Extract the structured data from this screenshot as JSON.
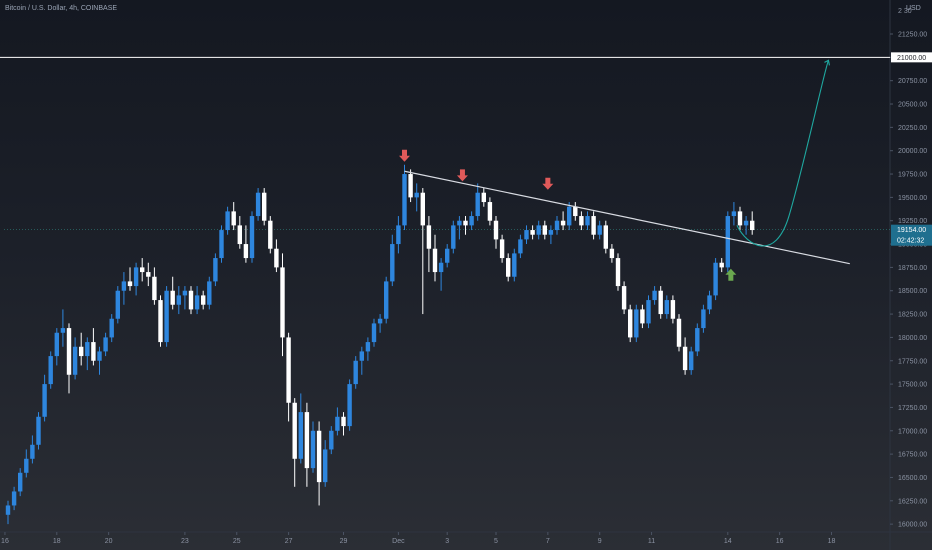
{
  "header": {
    "symbol": "Bitcoin / U.S. Dollar, 4h, COINBASE",
    "currency": "USD"
  },
  "price_axis": {
    "ticks": [
      "21250.00",
      "21000.00",
      "20750.00",
      "20500.00",
      "20250.00",
      "20000.00",
      "19750.00",
      "19500.00",
      "19250.00",
      "19000.00",
      "18750.00",
      "18500.00",
      "18250.00",
      "18000.00",
      "17750.00",
      "17500.00",
      "17250.00",
      "17000.00",
      "16750.00",
      "16500.00",
      "16250.00",
      "16000.00"
    ],
    "top_partial_label": "2 30",
    "last_price": "19154.00",
    "countdown": "02:42:32",
    "level_label": "21000.00"
  },
  "time_axis": {
    "ticks": [
      "16",
      "18",
      "20",
      "23",
      "25",
      "27",
      "29",
      "Dec",
      "3",
      "5",
      "7",
      "9",
      "11",
      "14",
      "16",
      "18"
    ]
  },
  "colors": {
    "up": "#2e86de",
    "down": "#ffffff",
    "trendline": "#d8dbe2",
    "resistance": "#ffffff",
    "arrow_top": "#e05a5a",
    "arrow_bottom": "#6aa84f",
    "projection": "#1fa8a0",
    "price_line": "#2e7d7a"
  },
  "chart_data": {
    "type": "candlestick",
    "title": "Bitcoin / U.S. Dollar, 4h, COINBASE",
    "ylabel": "USD",
    "ylim": [
      15980,
      21400
    ],
    "x_ticks": [
      "16",
      "18",
      "20",
      "23",
      "25",
      "27",
      "29",
      "Dec",
      "3",
      "5",
      "7",
      "9",
      "11",
      "14",
      "16",
      "18"
    ],
    "ohlc": [
      [
        16100,
        16250,
        16000,
        16200
      ],
      [
        16200,
        16400,
        16150,
        16350
      ],
      [
        16350,
        16600,
        16300,
        16550
      ],
      [
        16550,
        16800,
        16500,
        16700
      ],
      [
        16700,
        16950,
        16650,
        16850
      ],
      [
        16850,
        17200,
        16800,
        17150
      ],
      [
        17150,
        17600,
        17100,
        17500
      ],
      [
        17500,
        17850,
        17450,
        17800
      ],
      [
        17800,
        18100,
        17700,
        18050
      ],
      [
        18050,
        18300,
        17900,
        18100
      ],
      [
        18100,
        18150,
        17400,
        17600
      ],
      [
        17600,
        18000,
        17550,
        17900
      ],
      [
        17900,
        18050,
        17700,
        17800
      ],
      [
        17800,
        18000,
        17650,
        17950
      ],
      [
        17950,
        18100,
        17700,
        17750
      ],
      [
        17750,
        17900,
        17600,
        17850
      ],
      [
        17850,
        18050,
        17800,
        18000
      ],
      [
        18000,
        18250,
        17950,
        18200
      ],
      [
        18200,
        18550,
        18150,
        18500
      ],
      [
        18500,
        18700,
        18350,
        18600
      ],
      [
        18600,
        18750,
        18500,
        18550
      ],
      [
        18550,
        18800,
        18450,
        18750
      ],
      [
        18750,
        18850,
        18600,
        18700
      ],
      [
        18700,
        18800,
        18550,
        18650
      ],
      [
        18650,
        18750,
        18350,
        18400
      ],
      [
        18400,
        18450,
        17900,
        17950
      ],
      [
        17950,
        18550,
        17900,
        18500
      ],
      [
        18500,
        18650,
        18300,
        18350
      ],
      [
        18350,
        18550,
        18250,
        18450
      ],
      [
        18450,
        18550,
        18300,
        18500
      ],
      [
        18500,
        18550,
        18250,
        18300
      ],
      [
        18300,
        18550,
        18250,
        18450
      ],
      [
        18450,
        18500,
        18300,
        18350
      ],
      [
        18350,
        18650,
        18300,
        18600
      ],
      [
        18600,
        18900,
        18550,
        18850
      ],
      [
        18850,
        19200,
        18800,
        19150
      ],
      [
        19150,
        19400,
        19100,
        19350
      ],
      [
        19350,
        19450,
        19150,
        19200
      ],
      [
        19200,
        19300,
        18950,
        19000
      ],
      [
        19000,
        19200,
        18800,
        18850
      ],
      [
        18850,
        19350,
        18800,
        19300
      ],
      [
        19300,
        19600,
        19250,
        19550
      ],
      [
        19550,
        19600,
        19200,
        19250
      ],
      [
        19250,
        19300,
        18900,
        18950
      ],
      [
        18950,
        19050,
        18700,
        18750
      ],
      [
        18750,
        18900,
        17800,
        18000
      ],
      [
        18000,
        18050,
        17100,
        17300
      ],
      [
        17300,
        17350,
        16400,
        16700
      ],
      [
        16700,
        17400,
        16650,
        17200
      ],
      [
        17200,
        17300,
        16400,
        16600
      ],
      [
        16600,
        17100,
        16550,
        17000
      ],
      [
        17000,
        17100,
        16200,
        16450
      ],
      [
        16450,
        16900,
        16400,
        16800
      ],
      [
        16800,
        17050,
        16750,
        17000
      ],
      [
        17000,
        17250,
        16950,
        17150
      ],
      [
        17150,
        17200,
        16950,
        17050
      ],
      [
        17050,
        17550,
        17000,
        17500
      ],
      [
        17500,
        17800,
        17450,
        17750
      ],
      [
        17750,
        17900,
        17600,
        17850
      ],
      [
        17850,
        18000,
        17750,
        17950
      ],
      [
        17950,
        18200,
        17900,
        18150
      ],
      [
        18150,
        18250,
        18050,
        18200
      ],
      [
        18200,
        18650,
        18150,
        18600
      ],
      [
        18600,
        19100,
        18550,
        19000
      ],
      [
        19000,
        19300,
        18900,
        19200
      ],
      [
        19200,
        19850,
        19150,
        19750
      ],
      [
        19750,
        19800,
        19450,
        19500
      ],
      [
        19500,
        19650,
        19350,
        19550
      ],
      [
        19550,
        19600,
        18250,
        19200
      ],
      [
        19200,
        19300,
        18700,
        18950
      ],
      [
        18950,
        19100,
        18600,
        18700
      ],
      [
        18700,
        18850,
        18500,
        18800
      ],
      [
        18800,
        19000,
        18750,
        18950
      ],
      [
        18950,
        19250,
        18900,
        19200
      ],
      [
        19200,
        19300,
        19050,
        19250
      ],
      [
        19250,
        19300,
        19100,
        19200
      ],
      [
        19200,
        19350,
        19150,
        19300
      ],
      [
        19300,
        19650,
        19250,
        19550
      ],
      [
        19550,
        19600,
        19400,
        19450
      ],
      [
        19450,
        19500,
        19200,
        19250
      ],
      [
        19250,
        19300,
        18950,
        19050
      ],
      [
        19050,
        19100,
        18800,
        18850
      ],
      [
        18850,
        18900,
        18600,
        18650
      ],
      [
        18650,
        18950,
        18600,
        18900
      ],
      [
        18900,
        19100,
        18850,
        19050
      ],
      [
        19050,
        19200,
        19000,
        19150
      ],
      [
        19150,
        19200,
        19050,
        19100
      ],
      [
        19100,
        19250,
        19050,
        19200
      ],
      [
        19200,
        19250,
        19050,
        19100
      ],
      [
        19100,
        19200,
        19000,
        19150
      ],
      [
        19150,
        19300,
        19100,
        19250
      ],
      [
        19250,
        19350,
        19150,
        19200
      ],
      [
        19200,
        19450,
        19150,
        19400
      ],
      [
        19400,
        19450,
        19250,
        19300
      ],
      [
        19300,
        19350,
        19150,
        19200
      ],
      [
        19200,
        19350,
        19150,
        19300
      ],
      [
        19300,
        19350,
        19050,
        19100
      ],
      [
        19100,
        19250,
        19050,
        19200
      ],
      [
        19200,
        19250,
        18900,
        18950
      ],
      [
        18950,
        19000,
        18800,
        18850
      ],
      [
        18850,
        18900,
        18500,
        18550
      ],
      [
        18550,
        18600,
        18250,
        18300
      ],
      [
        18300,
        18350,
        17950,
        18000
      ],
      [
        18000,
        18350,
        17950,
        18300
      ],
      [
        18300,
        18350,
        18100,
        18150
      ],
      [
        18150,
        18450,
        18100,
        18400
      ],
      [
        18400,
        18550,
        18350,
        18500
      ],
      [
        18500,
        18550,
        18200,
        18250
      ],
      [
        18250,
        18450,
        18200,
        18400
      ],
      [
        18400,
        18450,
        18150,
        18200
      ],
      [
        18200,
        18250,
        17850,
        17900
      ],
      [
        17900,
        18000,
        17600,
        17650
      ],
      [
        17650,
        17900,
        17600,
        17850
      ],
      [
        17850,
        18150,
        17800,
        18100
      ],
      [
        18100,
        18350,
        18050,
        18300
      ],
      [
        18300,
        18500,
        18250,
        18450
      ],
      [
        18450,
        18850,
        18400,
        18800
      ],
      [
        18800,
        18850,
        18700,
        18750
      ],
      [
        18750,
        19350,
        18700,
        19300
      ],
      [
        19300,
        19450,
        19200,
        19350
      ],
      [
        19350,
        19400,
        19150,
        19200
      ],
      [
        19200,
        19300,
        19100,
        19250
      ],
      [
        19250,
        19350,
        19100,
        19150
      ]
    ],
    "trendline": [
      [
        65,
        19780
      ],
      [
        138,
        18790
      ]
    ],
    "resistance": 21000,
    "last_price": 19154,
    "projection_end": 21000
  }
}
